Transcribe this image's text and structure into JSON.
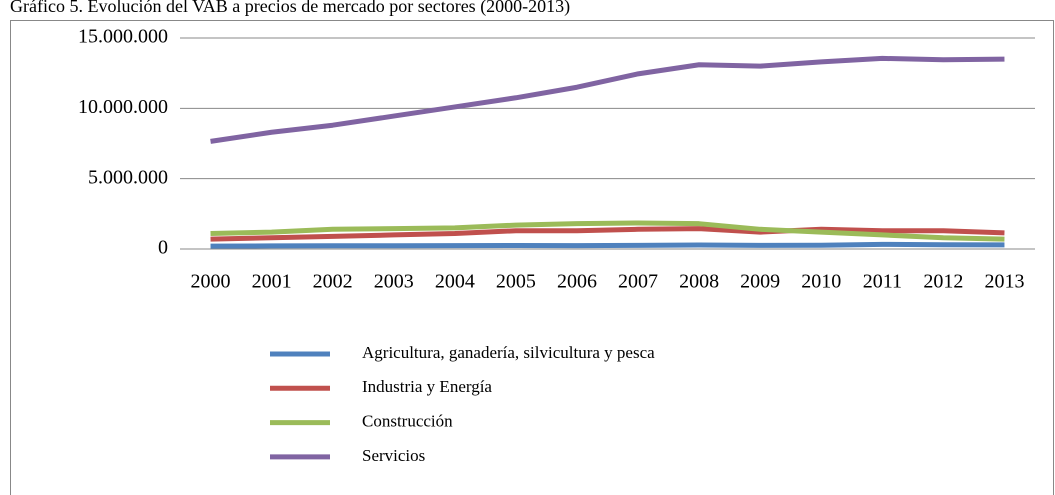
{
  "chart_data": {
    "type": "line",
    "title": "Gráfico 5. Evolución del VAB a precios de mercado por sectores (2000-2013)",
    "categories": [
      "2000",
      "2001",
      "2002",
      "2003",
      "2004",
      "2005",
      "2006",
      "2007",
      "2008",
      "2009",
      "2010",
      "2011",
      "2012",
      "2013"
    ],
    "series": [
      {
        "name": "Agricultura, ganadería, silvicultura y pesca",
        "color": "#4f81bd",
        "values": [
          200000,
          220000,
          230000,
          230000,
          240000,
          250000,
          240000,
          260000,
          280000,
          260000,
          270000,
          330000,
          300000,
          290000
        ]
      },
      {
        "name": "Industria y Energía",
        "color": "#c0504d",
        "values": [
          700000,
          800000,
          900000,
          1000000,
          1100000,
          1300000,
          1300000,
          1400000,
          1450000,
          1200000,
          1400000,
          1300000,
          1300000,
          1150000
        ]
      },
      {
        "name": "Construcción",
        "color": "#9bbb59",
        "values": [
          1100000,
          1200000,
          1400000,
          1450000,
          1500000,
          1700000,
          1800000,
          1850000,
          1800000,
          1400000,
          1200000,
          1000000,
          800000,
          700000
        ]
      },
      {
        "name": "Servicios",
        "color": "#8064a2",
        "values": [
          7650000,
          8300000,
          8800000,
          9450000,
          10100000,
          10750000,
          11500000,
          12450000,
          13100000,
          13000000,
          13300000,
          13550000,
          13450000,
          13500000
        ]
      }
    ],
    "ylim": [
      0,
      15000000
    ],
    "yticks": [
      0,
      {
        "value": 5000000,
        "label": "5.000.000"
      },
      {
        "value": 10000000,
        "label": "10.000.000"
      },
      {
        "value": 15000000,
        "label": "15.000.000"
      }
    ],
    "grid": true,
    "legend": "bottom"
  }
}
